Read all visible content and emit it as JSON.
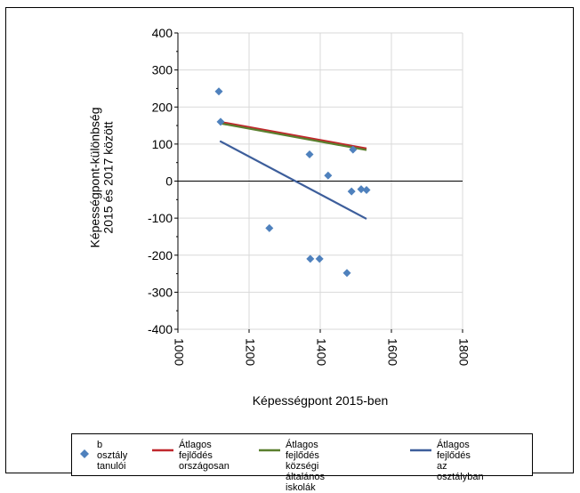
{
  "chart_data": {
    "type": "scatter",
    "ylabel": "Képességpont-különbség\n2015 és 2017 között",
    "xlabel": "Képességpont 2015-ben",
    "xlim": [
      1000,
      1800
    ],
    "ylim": [
      -400,
      400
    ],
    "xticks": [
      1000,
      1200,
      1400,
      1600,
      1800
    ],
    "xtick_labels": [
      "1000",
      "1200",
      "1400",
      "1600",
      "1800"
    ],
    "yticks": [
      400,
      300,
      200,
      100,
      0,
      -100,
      -200,
      -300,
      -400
    ],
    "ytick_labels": [
      "400",
      "300",
      "200",
      "100",
      "0",
      "-100",
      "-200",
      "-300",
      "-400"
    ],
    "grid": true,
    "legend_position": "bottom",
    "scatter": {
      "name": "b osztály tanulói",
      "color": "#4f81bd",
      "points": [
        {
          "x": 1115,
          "y": 242
        },
        {
          "x": 1120,
          "y": 160
        },
        {
          "x": 1257,
          "y": -127
        },
        {
          "x": 1370,
          "y": 72
        },
        {
          "x": 1372,
          "y": -210
        },
        {
          "x": 1398,
          "y": -210
        },
        {
          "x": 1422,
          "y": 15
        },
        {
          "x": 1475,
          "y": -248
        },
        {
          "x": 1488,
          "y": -28
        },
        {
          "x": 1492,
          "y": 85
        },
        {
          "x": 1515,
          "y": -22
        },
        {
          "x": 1530,
          "y": -24
        }
      ]
    },
    "lines": [
      {
        "name": "Átlagos fejlődés országosan",
        "color": "#c0282d",
        "x": [
          1118,
          1530
        ],
        "y": [
          160,
          88
        ]
      },
      {
        "name": "Átlagos fejlődés községi általános iskolák",
        "color": "#5a7f2e",
        "x": [
          1118,
          1530
        ],
        "y": [
          156,
          84
        ]
      },
      {
        "name": "Átlagos fejlődés az osztályban",
        "color": "#3d5e9b",
        "x": [
          1118,
          1530
        ],
        "y": [
          108,
          -102
        ]
      }
    ]
  },
  "legend": {
    "items": [
      {
        "label": "b osztály\ntanulói",
        "kind": "marker",
        "color": "#4f81bd"
      },
      {
        "label": "Átlagos fejlődés\nországosan",
        "kind": "line",
        "color": "#c0282d"
      },
      {
        "label": "Átlagos fejlődés\nközségi általános iskolák",
        "kind": "line",
        "color": "#5a7f2e"
      },
      {
        "label": "Átlagos fejlődés\naz osztályban",
        "kind": "line",
        "color": "#3d5e9b"
      }
    ]
  }
}
